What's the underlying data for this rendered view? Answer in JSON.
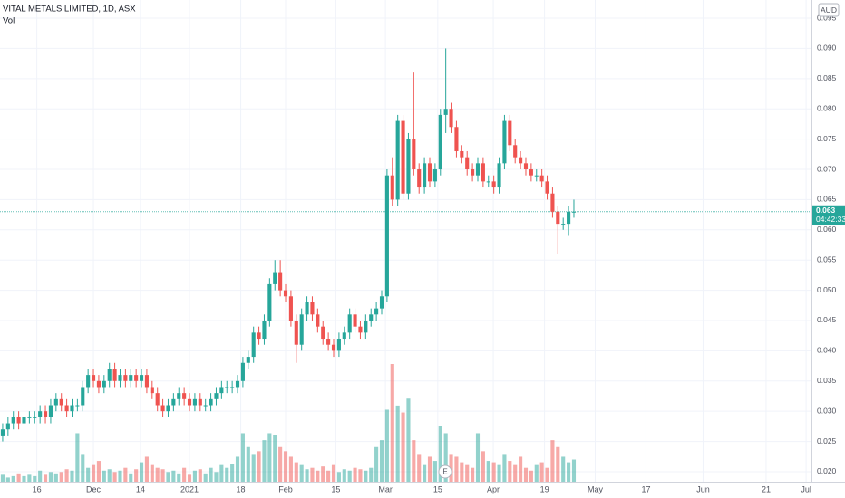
{
  "chart_data": {
    "type": "candlestick",
    "title": "VITAL METALS LIMITED, 1D, ASX",
    "volume_label": "Vol",
    "currency": "AUD",
    "last_price": 0.063,
    "last_price_label": "0.063",
    "countdown": "04:42:33",
    "earnings_label": "E",
    "up_color": "#26a69a",
    "down_color": "#ef5350",
    "xlim": [
      -0.5,
      151.5
    ],
    "ylim": [
      0.01835,
      0.098
    ],
    "grid": true,
    "yticks": [
      {
        "value": 0.02,
        "label": "0.020"
      },
      {
        "value": 0.025,
        "label": "0.025"
      },
      {
        "value": 0.03,
        "label": "0.030"
      },
      {
        "value": 0.035,
        "label": "0.035"
      },
      {
        "value": 0.04,
        "label": "0.040"
      },
      {
        "value": 0.045,
        "label": "0.045"
      },
      {
        "value": 0.05,
        "label": "0.050"
      },
      {
        "value": 0.055,
        "label": "0.055"
      },
      {
        "value": 0.06,
        "label": "0.060"
      },
      {
        "value": 0.065,
        "label": "0.065"
      },
      {
        "value": 0.07,
        "label": "0.070"
      },
      {
        "value": 0.075,
        "label": "0.075"
      },
      {
        "value": 0.08,
        "label": "0.080"
      },
      {
        "value": 0.085,
        "label": "0.085"
      },
      {
        "value": 0.09,
        "label": "0.090"
      },
      {
        "value": 0.095,
        "label": "0.095"
      }
    ],
    "xticks": [
      {
        "value": 6.4,
        "label": "16"
      },
      {
        "value": 17,
        "label": "Dec"
      },
      {
        "value": 25.8,
        "label": "14"
      },
      {
        "value": 35,
        "label": "2021"
      },
      {
        "value": 44.6,
        "label": "18"
      },
      {
        "value": 53,
        "label": "Feb"
      },
      {
        "value": 62.4,
        "label": "15"
      },
      {
        "value": 71.7,
        "label": "Mar"
      },
      {
        "value": 81.5,
        "label": "15"
      },
      {
        "value": 91.9,
        "label": "Apr"
      },
      {
        "value": 101.5,
        "label": "19"
      },
      {
        "value": 111,
        "label": "May"
      },
      {
        "value": 120.5,
        "label": "17"
      },
      {
        "value": 131.2,
        "label": "Jun"
      },
      {
        "value": 143,
        "label": "21"
      },
      {
        "value": 150.5,
        "label": "Jul"
      }
    ],
    "open": [
      0.026,
      0.027,
      0.028,
      0.029,
      0.028,
      0.029,
      0.029,
      0.029,
      0.03,
      0.029,
      0.031,
      0.032,
      0.031,
      0.03,
      0.031,
      0.031,
      0.034,
      0.036,
      0.035,
      0.034,
      0.035,
      0.037,
      0.035,
      0.036,
      0.035,
      0.036,
      0.035,
      0.036,
      0.034,
      0.033,
      0.031,
      0.03,
      0.031,
      0.032,
      0.033,
      0.032,
      0.031,
      0.032,
      0.031,
      0.031,
      0.032,
      0.033,
      0.034,
      0.034,
      0.034,
      0.035,
      0.038,
      0.039,
      0.043,
      0.042,
      0.045,
      0.051,
      0.053,
      0.05,
      0.049,
      0.045,
      0.041,
      0.046,
      0.048,
      0.046,
      0.044,
      0.042,
      0.041,
      0.04,
      0.042,
      0.043,
      0.046,
      0.044,
      0.043,
      0.045,
      0.046,
      0.047,
      0.049,
      0.069,
      0.065,
      0.078,
      0.066,
      0.075,
      0.07,
      0.067,
      0.071,
      0.068,
      0.07,
      0.079,
      0.08,
      0.077,
      0.073,
      0.072,
      0.07,
      0.069,
      0.071,
      0.068,
      0.068,
      0.067,
      0.071,
      0.078,
      0.074,
      0.072,
      0.071,
      0.07,
      0.069,
      0.069,
      0.068,
      0.066,
      0.063,
      0.061,
      0.061,
      0.063
    ],
    "high": [
      0.028,
      0.029,
      0.03,
      0.03,
      0.03,
      0.03,
      0.03,
      0.031,
      0.031,
      0.032,
      0.033,
      0.033,
      0.032,
      0.032,
      0.032,
      0.035,
      0.037,
      0.037,
      0.036,
      0.036,
      0.038,
      0.038,
      0.037,
      0.037,
      0.037,
      0.037,
      0.037,
      0.037,
      0.035,
      0.034,
      0.032,
      0.032,
      0.033,
      0.034,
      0.034,
      0.033,
      0.033,
      0.033,
      0.032,
      0.033,
      0.034,
      0.035,
      0.035,
      0.035,
      0.036,
      0.039,
      0.04,
      0.044,
      0.044,
      0.046,
      0.052,
      0.055,
      0.055,
      0.051,
      0.05,
      0.046,
      0.047,
      0.049,
      0.049,
      0.047,
      0.045,
      0.043,
      0.042,
      0.043,
      0.044,
      0.047,
      0.047,
      0.045,
      0.046,
      0.047,
      0.048,
      0.05,
      0.07,
      0.072,
      0.079,
      0.079,
      0.076,
      0.086,
      0.071,
      0.072,
      0.072,
      0.071,
      0.08,
      0.09,
      0.081,
      0.078,
      0.074,
      0.073,
      0.071,
      0.072,
      0.072,
      0.069,
      0.069,
      0.072,
      0.079,
      0.079,
      0.075,
      0.073,
      0.072,
      0.071,
      0.07,
      0.07,
      0.069,
      0.067,
      0.064,
      0.062,
      0.064,
      0.065
    ],
    "low": [
      0.025,
      0.026,
      0.027,
      0.027,
      0.027,
      0.028,
      0.028,
      0.028,
      0.028,
      0.028,
      0.03,
      0.03,
      0.029,
      0.029,
      0.03,
      0.03,
      0.033,
      0.034,
      0.033,
      0.033,
      0.034,
      0.034,
      0.034,
      0.034,
      0.034,
      0.034,
      0.034,
      0.033,
      0.032,
      0.03,
      0.029,
      0.029,
      0.03,
      0.031,
      0.031,
      0.03,
      0.03,
      0.03,
      0.03,
      0.03,
      0.031,
      0.032,
      0.033,
      0.033,
      0.033,
      0.034,
      0.037,
      0.038,
      0.041,
      0.041,
      0.044,
      0.05,
      0.049,
      0.048,
      0.044,
      0.038,
      0.04,
      0.045,
      0.045,
      0.043,
      0.041,
      0.04,
      0.039,
      0.039,
      0.041,
      0.042,
      0.043,
      0.042,
      0.042,
      0.044,
      0.045,
      0.046,
      0.048,
      0.064,
      0.064,
      0.065,
      0.065,
      0.069,
      0.066,
      0.066,
      0.067,
      0.067,
      0.069,
      0.076,
      0.076,
      0.072,
      0.071,
      0.069,
      0.068,
      0.068,
      0.067,
      0.067,
      0.066,
      0.066,
      0.07,
      0.073,
      0.071,
      0.07,
      0.069,
      0.068,
      0.068,
      0.067,
      0.065,
      0.062,
      0.056,
      0.06,
      0.059,
      0.062
    ],
    "close": [
      0.027,
      0.028,
      0.029,
      0.028,
      0.029,
      0.029,
      0.029,
      0.03,
      0.029,
      0.031,
      0.032,
      0.031,
      0.03,
      0.031,
      0.031,
      0.034,
      0.036,
      0.035,
      0.034,
      0.035,
      0.037,
      0.035,
      0.036,
      0.035,
      0.036,
      0.035,
      0.036,
      0.034,
      0.033,
      0.031,
      0.03,
      0.031,
      0.032,
      0.033,
      0.032,
      0.031,
      0.032,
      0.031,
      0.031,
      0.032,
      0.033,
      0.034,
      0.034,
      0.034,
      0.035,
      0.038,
      0.039,
      0.043,
      0.042,
      0.045,
      0.051,
      0.053,
      0.05,
      0.049,
      0.045,
      0.041,
      0.046,
      0.048,
      0.046,
      0.044,
      0.042,
      0.041,
      0.04,
      0.042,
      0.043,
      0.046,
      0.044,
      0.043,
      0.045,
      0.046,
      0.047,
      0.049,
      0.069,
      0.065,
      0.078,
      0.066,
      0.075,
      0.07,
      0.067,
      0.071,
      0.068,
      0.07,
      0.079,
      0.08,
      0.077,
      0.073,
      0.072,
      0.07,
      0.069,
      0.071,
      0.068,
      0.068,
      0.067,
      0.071,
      0.078,
      0.074,
      0.072,
      0.071,
      0.07,
      0.069,
      0.069,
      0.068,
      0.066,
      0.063,
      0.061,
      0.061,
      0.063,
      0.063
    ],
    "volume": [
      5,
      3,
      4,
      6,
      4,
      5,
      4,
      8,
      5,
      7,
      6,
      7,
      9,
      8,
      35,
      20,
      10,
      12,
      15,
      8,
      9,
      7,
      8,
      10,
      6,
      9,
      14,
      18,
      12,
      10,
      9,
      7,
      8,
      6,
      10,
      5,
      8,
      9,
      6,
      10,
      7,
      12,
      10,
      13,
      18,
      35,
      25,
      20,
      22,
      30,
      35,
      34,
      25,
      22,
      18,
      14,
      12,
      9,
      10,
      8,
      11,
      8,
      12,
      7,
      9,
      8,
      10,
      9,
      8,
      10,
      25,
      30,
      52,
      85,
      55,
      50,
      60,
      30,
      20,
      12,
      18,
      15,
      40,
      35,
      20,
      18,
      14,
      12,
      10,
      35,
      22,
      15,
      14,
      12,
      20,
      15,
      12,
      18,
      10,
      8,
      12,
      14,
      10,
      30,
      25,
      18,
      14,
      16
    ]
  }
}
